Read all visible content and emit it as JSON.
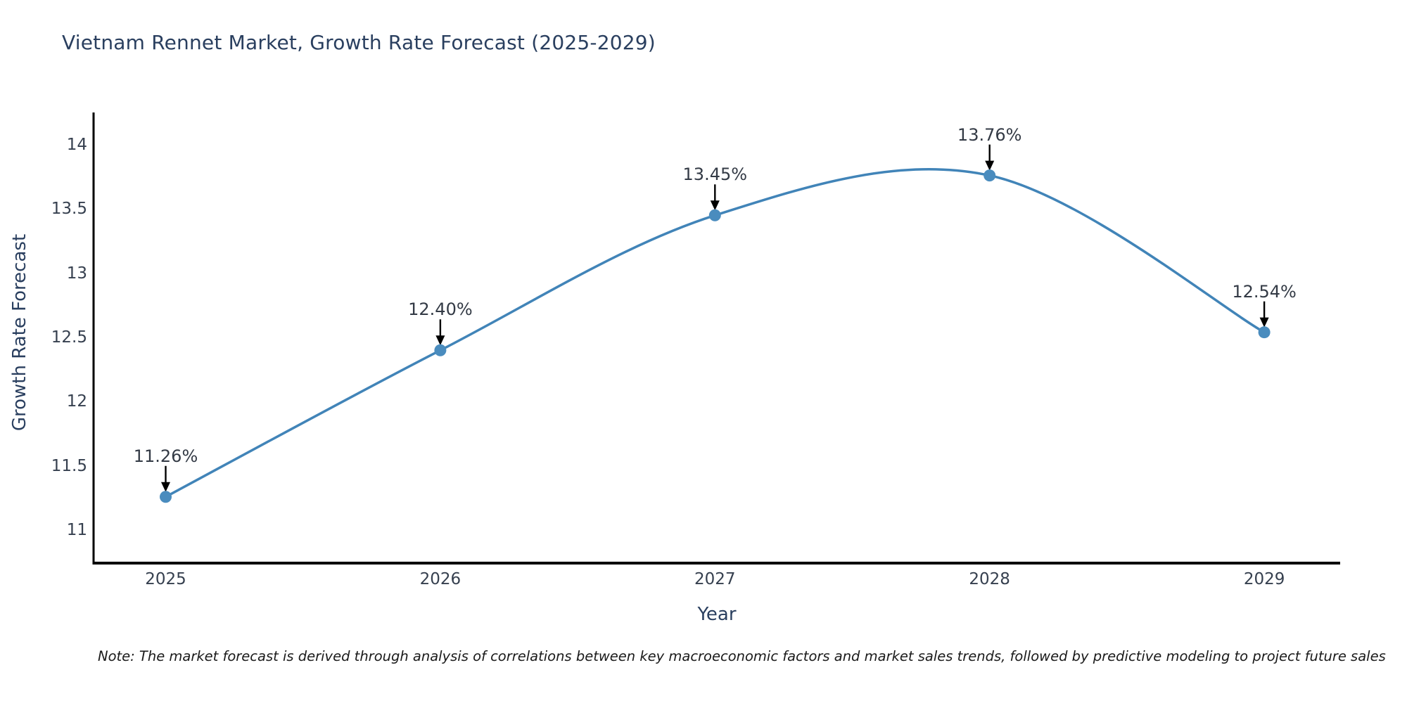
{
  "chart": {
    "title": "Vietnam Rennet Market, Growth Rate Forecast (2025-2029)",
    "x_axis_title": "Year",
    "y_axis_title": "Growth Rate Forecast",
    "note": "Note: The market forecast is derived through analysis of correlations between key macroeconomic factors and market sales trends, followed by predictive modeling to project future sales"
  },
  "chart_data": {
    "type": "line",
    "line_shape": "spline",
    "title": "Vietnam Rennet Market, Growth Rate Forecast (2025-2029)",
    "xlabel": "Year",
    "ylabel": "Growth Rate Forecast",
    "categories": [
      "2025",
      "2026",
      "2027",
      "2028",
      "2029"
    ],
    "values": [
      11.26,
      12.4,
      13.45,
      13.76,
      12.54
    ],
    "point_labels": [
      "11.26%",
      "12.40%",
      "13.45%",
      "13.76%",
      "12.54%"
    ],
    "y_tick_labels": [
      "11",
      "11.5",
      "12",
      "12.5",
      "13",
      "13.5",
      "14"
    ],
    "y_tick_values": [
      11,
      11.5,
      12,
      12.5,
      13,
      13.5,
      14
    ],
    "ylim": [
      10.75,
      14.25
    ],
    "grid": false,
    "legend": "none",
    "annotations_have_arrows": true,
    "colors": {
      "line": "#4184b8",
      "marker": "#4a8cbe",
      "arrow": "#000000",
      "axis": "#000000",
      "title_text": "#2a3f5f",
      "tick_text": "#36404f",
      "annotation_text": "#333a45",
      "note_text": "#1a1a1a",
      "background": "#ffffff"
    }
  }
}
